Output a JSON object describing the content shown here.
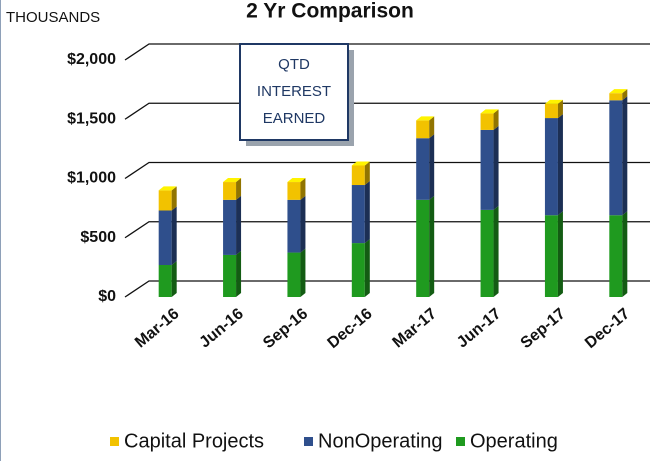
{
  "chart_data": {
    "type": "stacked_bar",
    "title": "2 Yr Comparison",
    "unit_label": "THOUSANDS",
    "annotation": [
      "QTD",
      "INTEREST",
      "EARNED"
    ],
    "categories": [
      "Mar-16",
      "Jun-16",
      "Sep-16",
      "Dec-16",
      "Mar-17",
      "Jun-17",
      "Sep-17",
      "Dec-17"
    ],
    "series": [
      {
        "name": "Operating",
        "color": "#1f9a1f",
        "values": [
          270,
          355,
          375,
          455,
          820,
          735,
          690,
          690
        ]
      },
      {
        "name": "NonOperating",
        "color": "#2f4f8c",
        "values": [
          460,
          465,
          445,
          490,
          520,
          675,
          820,
          970
        ]
      },
      {
        "name": "Capital Projects",
        "color": "#f2c200",
        "values": [
          170,
          150,
          150,
          165,
          150,
          140,
          120,
          60
        ]
      }
    ],
    "ylim": [
      0,
      2000
    ],
    "yticks": [
      {
        "value": 0,
        "label": "$0"
      },
      {
        "value": 500,
        "label": "$500"
      },
      {
        "value": 1000,
        "label": "$1,000"
      },
      {
        "value": 1500,
        "label": "$1,500"
      },
      {
        "value": 2000,
        "label": "$2,000"
      }
    ],
    "grid": true,
    "legend_order": [
      "Capital Projects",
      "NonOperating",
      "Operating"
    ]
  }
}
